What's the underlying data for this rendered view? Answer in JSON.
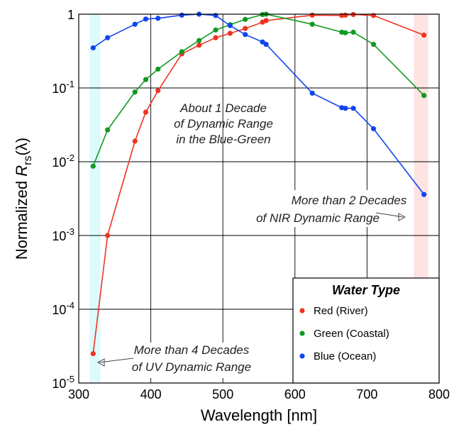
{
  "chart_data": {
    "type": "line",
    "title": "",
    "xlabel": "Wavelength [nm]",
    "ylabel_prefix": "Normalized ",
    "ylabel_var": "R",
    "ylabel_sub": "rs",
    "ylabel_suffix": "(λ)",
    "xlim": [
      300,
      800
    ],
    "ylim_log10": [
      -5,
      0
    ],
    "yscale": "log",
    "grid": true,
    "x_ticks": [
      "300",
      "400",
      "500",
      "600",
      "700",
      "800"
    ],
    "x_tick_values": [
      300,
      400,
      500,
      600,
      700,
      800
    ],
    "y_ticks": [
      {
        "value": 1,
        "base": "1",
        "exp": ""
      },
      {
        "value": 0.1,
        "base": "10",
        "exp": "-1"
      },
      {
        "value": 0.01,
        "base": "10",
        "exp": "-2"
      },
      {
        "value": 0.001,
        "base": "10",
        "exp": "-3"
      },
      {
        "value": 0.0001,
        "base": "10",
        "exp": "-4"
      },
      {
        "value": 1e-05,
        "base": "10",
        "exp": "-5"
      }
    ],
    "shaded_bands": [
      {
        "x": [
          315,
          330
        ],
        "color": "#ddfbfd"
      },
      {
        "x": [
          765,
          785
        ],
        "color": "#fde3e1"
      }
    ],
    "legend": {
      "title": "Water Type",
      "placement": "bottom-right"
    },
    "series": [
      {
        "name": "Red (River)",
        "color": "#ee3322",
        "x": [
          320,
          340,
          378,
          393,
          410,
          443,
          467,
          490,
          510,
          531,
          555,
          560,
          624,
          665,
          670,
          681,
          709,
          779
        ],
        "y": [
          2.5e-05,
          0.001,
          0.019,
          0.047,
          0.092,
          0.29,
          0.38,
          0.48,
          0.55,
          0.64,
          0.78,
          0.82,
          0.97,
          0.96,
          0.97,
          0.99,
          0.96,
          0.52
        ]
      },
      {
        "name": "Green (Coastal)",
        "color": "#119922",
        "x": [
          320,
          340,
          378,
          393,
          410,
          443,
          467,
          490,
          510,
          531,
          555,
          560,
          624,
          665,
          670,
          681,
          709,
          779
        ],
        "y": [
          0.0087,
          0.027,
          0.088,
          0.13,
          0.18,
          0.31,
          0.44,
          0.61,
          0.72,
          0.85,
          0.99,
          1.0,
          0.73,
          0.57,
          0.56,
          0.57,
          0.39,
          0.079
        ]
      },
      {
        "name": "Blue (Ocean)",
        "color": "#1144ee",
        "x": [
          320,
          340,
          378,
          393,
          410,
          443,
          467,
          490,
          510,
          531,
          555,
          560,
          624,
          665,
          670,
          681,
          709,
          779
        ],
        "y": [
          0.35,
          0.48,
          0.73,
          0.86,
          0.88,
          0.97,
          1.0,
          0.96,
          0.7,
          0.53,
          0.42,
          0.39,
          0.085,
          0.054,
          0.053,
          0.053,
          0.028,
          0.0036
        ]
      }
    ],
    "annotations": [
      {
        "lines": [
          "About 1 Decade",
          "of Dynamic Range",
          "in the Blue-Green"
        ]
      },
      {
        "lines": [
          "More than 2 Decades",
          "of NIR Dynamic Range"
        ]
      },
      {
        "lines": [
          "More than 4 Decades",
          "of UV Dynamic Range"
        ]
      }
    ]
  }
}
